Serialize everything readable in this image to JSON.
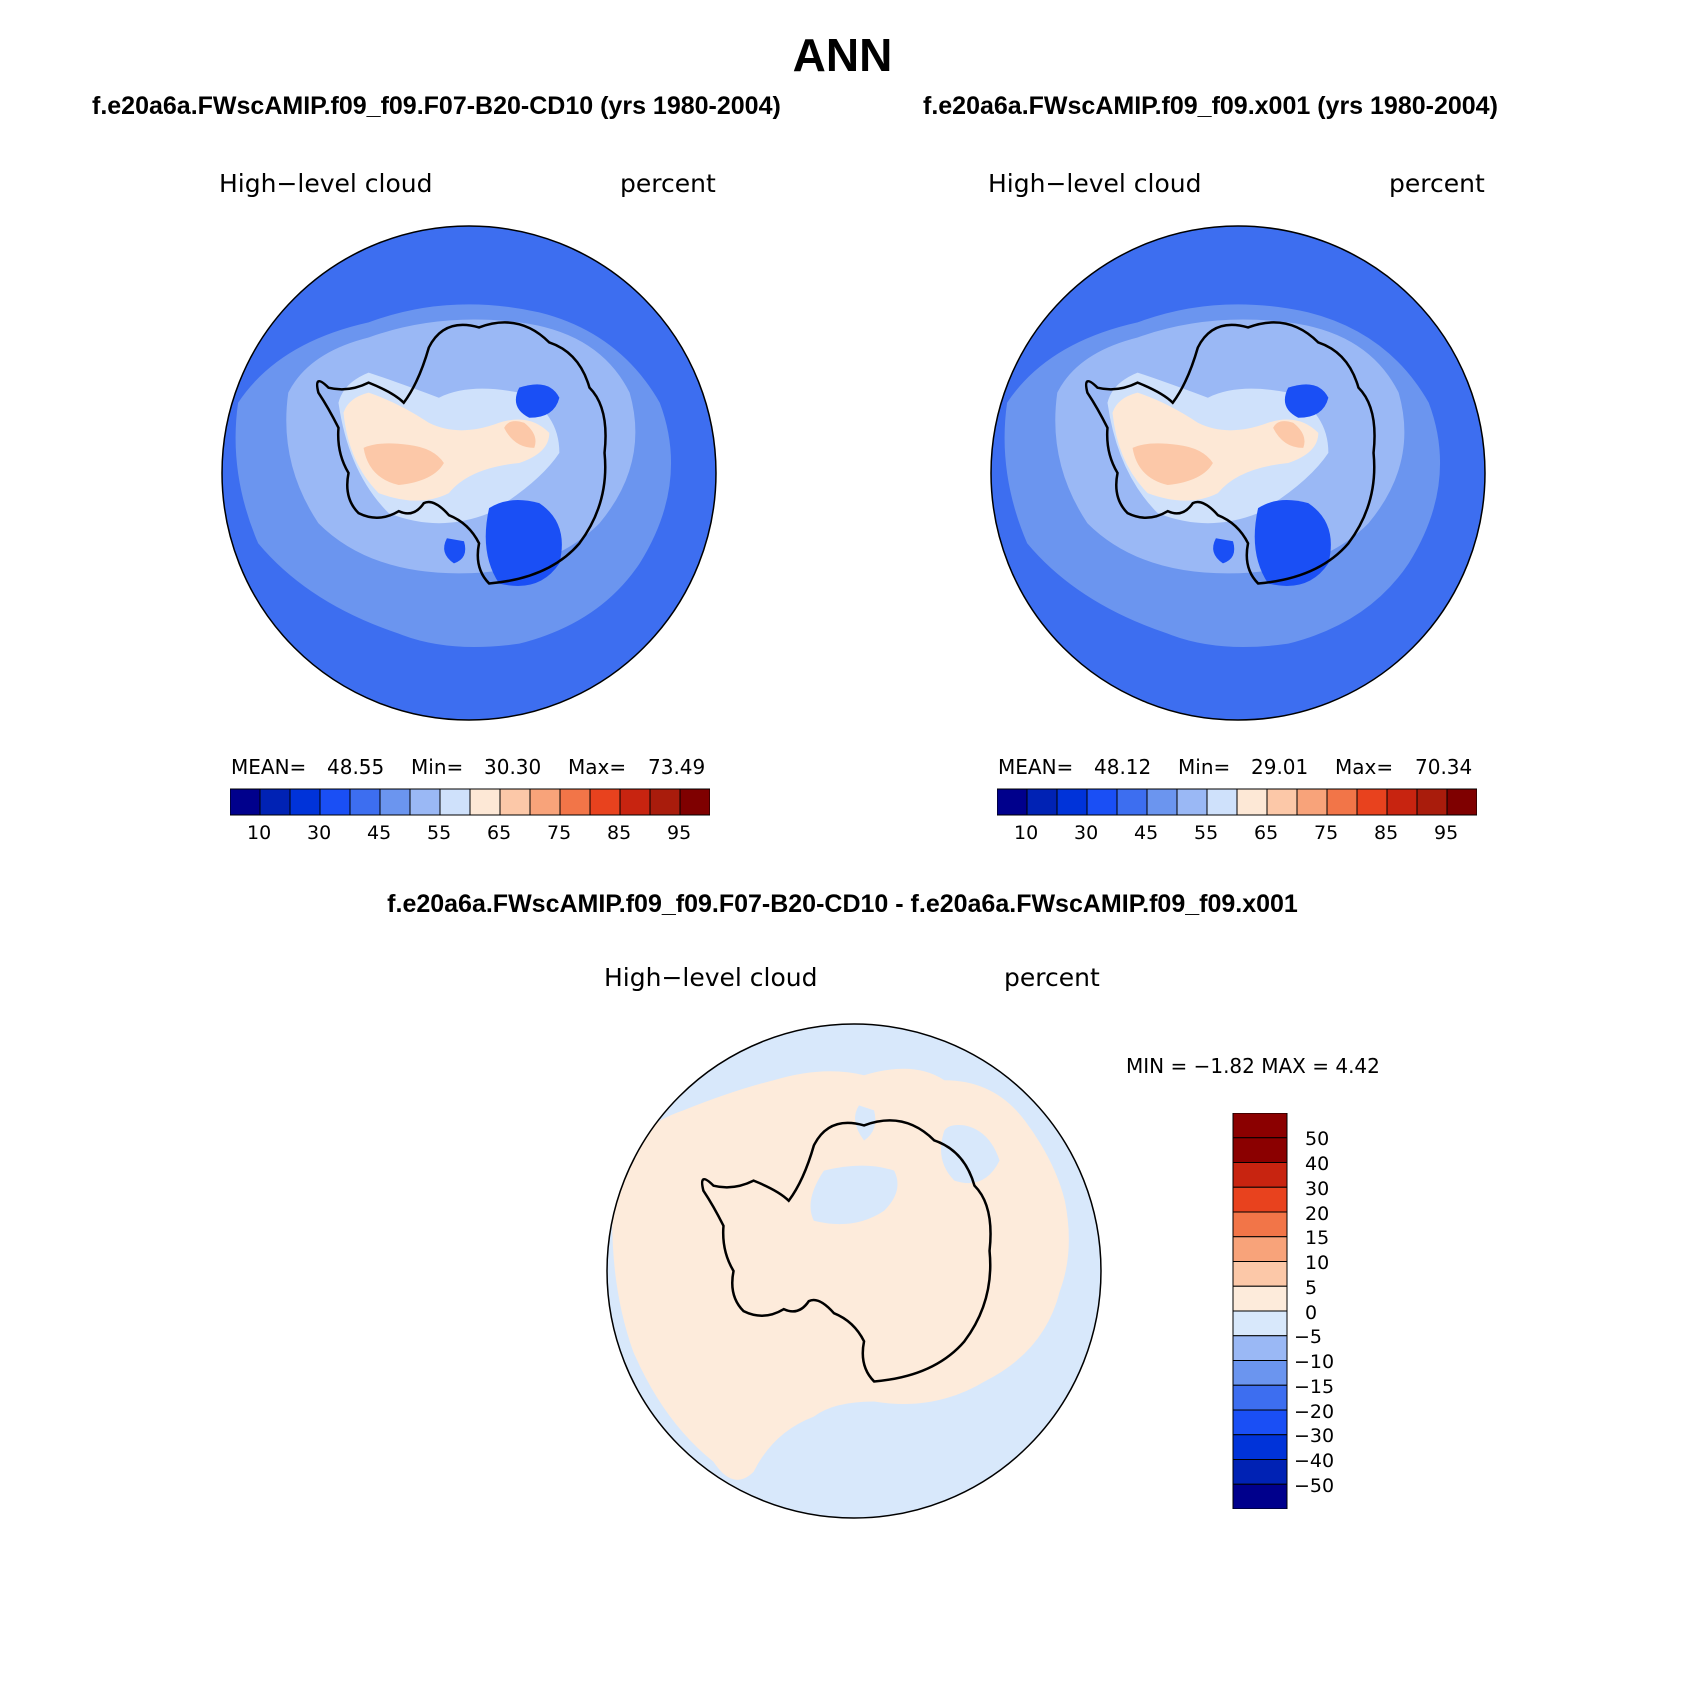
{
  "season": "ANN",
  "colors": {
    "abs_palette": [
      "#00008c",
      "#0022b4",
      "#0033d9",
      "#1a4ff5",
      "#3d6ef0",
      "#6b95ef",
      "#9ab8f5",
      "#cfe1fb",
      "#fde8d6",
      "#fcc8a8",
      "#f8a37a",
      "#f27548",
      "#e8421e",
      "#c82410",
      "#a91c0c",
      "#7f0000"
    ],
    "diff_palette": [
      "#00008c",
      "#0022b4",
      "#0033d9",
      "#1a4ff5",
      "#3d6ef0",
      "#6b95ef",
      "#9ab8f5",
      "#d8e8fb",
      "#fdebdb",
      "#fcc8a8",
      "#f8a37a",
      "#f27548",
      "#e8421e",
      "#c82410",
      "#8b0000"
    ],
    "land_outline": "#000000"
  },
  "panels": [
    {
      "case_title": "f.e20a6a.FWscAMIP.f09_f09.F07-B20-CD10 (yrs 1980-2004)",
      "variable": "High−level cloud",
      "units": "percent",
      "stats": {
        "mean_label": "MEAN=",
        "mean": "48.55",
        "min_label": "Min=",
        "min": "30.30",
        "max_label": "Max=",
        "max": "73.49"
      },
      "colorbar_ticks": [
        "10",
        "30",
        "45",
        "55",
        "65",
        "75",
        "85",
        "95"
      ]
    },
    {
      "case_title": "f.e20a6a.FWscAMIP.f09_f09.x001 (yrs 1980-2004)",
      "variable": "High−level cloud",
      "units": "percent",
      "stats": {
        "mean_label": "MEAN=",
        "mean": "48.12",
        "min_label": "Min=",
        "min": "29.01",
        "max_label": "Max=",
        "max": "70.34"
      },
      "colorbar_ticks": [
        "10",
        "30",
        "45",
        "55",
        "65",
        "75",
        "85",
        "95"
      ]
    }
  ],
  "difference": {
    "title": "f.e20a6a.FWscAMIP.f09_f09.F07-B20-CD10 - f.e20a6a.FWscAMIP.f09_f09.x001",
    "variable": "High−level cloud",
    "units": "percent",
    "min_max_text": "MIN =   −1.82 MAX =    4.42",
    "colorbar_ticks": [
      "50",
      "40",
      "30",
      "20",
      "15",
      "10",
      "5",
      "0",
      "−5",
      "−10",
      "−15",
      "−20",
      "−30",
      "−40",
      "−50"
    ]
  }
}
